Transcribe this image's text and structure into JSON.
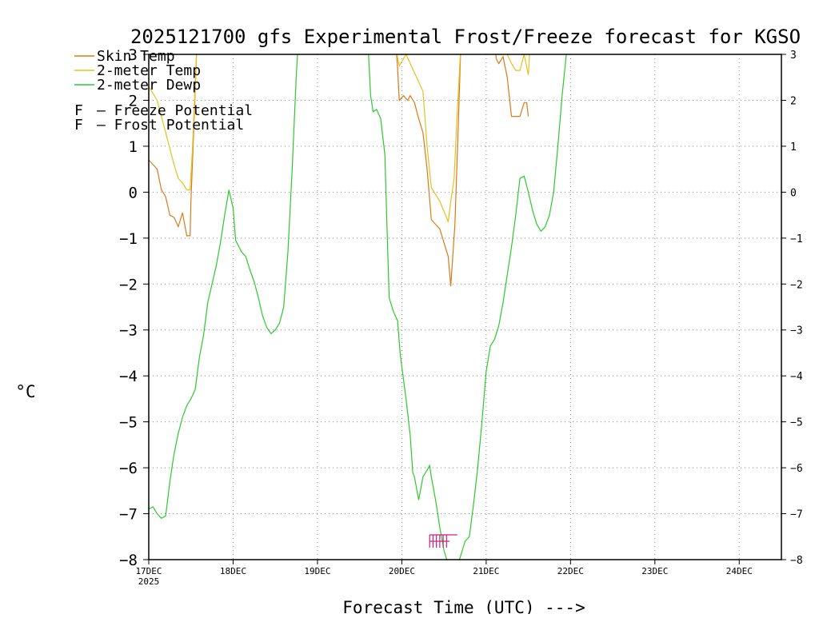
{
  "chart_data": {
    "type": "line",
    "title": "2025121700 gfs Experimental Frost/Freeze forecast for KGSO",
    "ylabel": "°C",
    "xlabel": "Forecast Time (UTC) --->",
    "ylim": [
      -8,
      3
    ],
    "xlim": [
      0,
      7.5
    ],
    "y_ticks": [
      "−8",
      "−7",
      "−6",
      "−5",
      "−4",
      "−3",
      "−2",
      "−1",
      "0",
      "1",
      "2",
      "3"
    ],
    "y_tick_values": [
      -8,
      -7,
      -6,
      -5,
      -4,
      -3,
      -2,
      -1,
      0,
      1,
      2,
      3
    ],
    "x_ticks": [
      "17DEC",
      "18DEC",
      "19DEC",
      "20DEC",
      "21DEC",
      "22DEC",
      "23DEC",
      "24DEC"
    ],
    "x_tick_values": [
      0,
      1,
      2,
      3,
      4,
      5,
      6,
      7
    ],
    "x_year_label": "2025",
    "x_unit": "days since 17DEC 00Z",
    "grid": true,
    "legend": {
      "series": [
        "Skin Temp",
        "2-meter Temp",
        "2-meter Dewp"
      ],
      "potential_labels": [
        {
          "symbol": "F",
          "text": "– Freeze Potential",
          "color": "#c8207e"
        },
        {
          "symbol": "F",
          "text": "– Frost Potential",
          "color": "#4a4ae0"
        }
      ]
    },
    "series": [
      {
        "name": "Skin Temp",
        "color": "#d97a1a",
        "segments": [
          [
            [
              0,
              0.7
            ],
            [
              0.05,
              0.6
            ],
            [
              0.1,
              0.5
            ],
            [
              0.15,
              0.05
            ],
            [
              0.2,
              -0.1
            ],
            [
              0.25,
              -0.5
            ],
            [
              0.3,
              -0.55
            ],
            [
              0.35,
              -0.75
            ],
            [
              0.4,
              -0.45
            ],
            [
              0.45,
              -0.95
            ],
            [
              0.49,
              -0.95
            ],
            [
              0.5,
              -0.2
            ],
            [
              0.53,
              1.2
            ],
            [
              0.57,
              3.2
            ]
          ],
          [
            [
              2.93,
              3.2
            ],
            [
              2.95,
              2.7
            ],
            [
              2.97,
              2.0
            ],
            [
              3.02,
              2.1
            ],
            [
              3.07,
              2.0
            ],
            [
              3.1,
              2.1
            ],
            [
              3.15,
              1.95
            ],
            [
              3.2,
              1.6
            ],
            [
              3.25,
              1.3
            ],
            [
              3.3,
              0.5
            ],
            [
              3.35,
              -0.6
            ],
            [
              3.4,
              -0.7
            ],
            [
              3.45,
              -0.8
            ],
            [
              3.5,
              -1.1
            ],
            [
              3.55,
              -1.4
            ],
            [
              3.58,
              -2.05
            ],
            [
              3.6,
              -1.5
            ],
            [
              3.63,
              -0.7
            ],
            [
              3.67,
              1.5
            ],
            [
              3.7,
              3.2
            ]
          ],
          [
            [
              4.1,
              3.2
            ],
            [
              4.12,
              2.9
            ],
            [
              4.15,
              2.8
            ],
            [
              4.2,
              2.95
            ],
            [
              4.25,
              2.5
            ],
            [
              4.3,
              1.65
            ],
            [
              4.4,
              1.65
            ],
            [
              4.45,
              1.95
            ],
            [
              4.48,
              1.95
            ],
            [
              4.5,
              1.65
            ]
          ]
        ]
      },
      {
        "name": "2-meter Temp",
        "color": "#e6c020",
        "segments": [
          [
            [
              0,
              2.3
            ],
            [
              0.1,
              2.0
            ],
            [
              0.2,
              1.3
            ],
            [
              0.3,
              0.6
            ],
            [
              0.35,
              0.3
            ],
            [
              0.4,
              0.2
            ],
            [
              0.45,
              0.05
            ],
            [
              0.49,
              0.05
            ],
            [
              0.52,
              1.0
            ],
            [
              0.57,
              3.2
            ]
          ],
          [
            [
              2.92,
              3.2
            ],
            [
              2.97,
              2.75
            ],
            [
              3.05,
              3.0
            ],
            [
              3.15,
              2.6
            ],
            [
              3.25,
              2.2
            ],
            [
              3.3,
              1.0
            ],
            [
              3.35,
              0.1
            ],
            [
              3.45,
              -0.2
            ],
            [
              3.52,
              -0.5
            ],
            [
              3.55,
              -0.65
            ],
            [
              3.58,
              -0.2
            ],
            [
              3.62,
              0.3
            ],
            [
              3.65,
              1.5
            ],
            [
              3.7,
              3.2
            ]
          ],
          [
            [
              4.1,
              3.2
            ],
            [
              4.15,
              3.0
            ],
            [
              4.25,
              3.0
            ],
            [
              4.3,
              2.8
            ],
            [
              4.35,
              2.65
            ],
            [
              4.4,
              2.65
            ],
            [
              4.45,
              3.0
            ],
            [
              4.5,
              2.55
            ],
            [
              4.52,
              3.2
            ]
          ]
        ]
      },
      {
        "name": "2-meter Dewp",
        "color": "#2ec82e",
        "segments": [
          [
            [
              0,
              -6.9
            ],
            [
              0.05,
              -6.85
            ],
            [
              0.1,
              -7.0
            ],
            [
              0.15,
              -7.1
            ],
            [
              0.2,
              -7.05
            ],
            [
              0.25,
              -6.3
            ],
            [
              0.3,
              -5.7
            ],
            [
              0.35,
              -5.25
            ],
            [
              0.4,
              -4.9
            ],
            [
              0.45,
              -4.65
            ],
            [
              0.5,
              -4.5
            ],
            [
              0.55,
              -4.3
            ],
            [
              0.6,
              -3.6
            ],
            [
              0.65,
              -3.1
            ],
            [
              0.7,
              -2.4
            ],
            [
              0.75,
              -2.0
            ],
            [
              0.8,
              -1.6
            ],
            [
              0.85,
              -1.1
            ],
            [
              0.9,
              -0.5
            ],
            [
              0.95,
              0.05
            ],
            [
              1.0,
              -0.35
            ],
            [
              1.03,
              -1.05
            ],
            [
              1.1,
              -1.3
            ],
            [
              1.15,
              -1.4
            ],
            [
              1.2,
              -1.7
            ],
            [
              1.25,
              -1.95
            ],
            [
              1.3,
              -2.3
            ],
            [
              1.35,
              -2.7
            ],
            [
              1.4,
              -2.95
            ],
            [
              1.45,
              -3.08
            ],
            [
              1.5,
              -3.0
            ],
            [
              1.55,
              -2.85
            ],
            [
              1.6,
              -2.5
            ],
            [
              1.65,
              -1.3
            ],
            [
              1.7,
              0.5
            ],
            [
              1.75,
              2.6
            ],
            [
              1.77,
              3.2
            ]
          ],
          [
            [
              2.6,
              3.2
            ],
            [
              2.63,
              2.1
            ],
            [
              2.66,
              1.75
            ],
            [
              2.7,
              1.8
            ],
            [
              2.75,
              1.6
            ],
            [
              2.8,
              0.8
            ],
            [
              2.82,
              -0.5
            ],
            [
              2.85,
              -2.3
            ],
            [
              2.9,
              -2.6
            ],
            [
              2.95,
              -2.8
            ],
            [
              2.98,
              -3.5
            ],
            [
              3.0,
              -3.8
            ],
            [
              3.05,
              -4.5
            ],
            [
              3.1,
              -5.3
            ],
            [
              3.13,
              -6.1
            ],
            [
              3.15,
              -6.2
            ],
            [
              3.2,
              -6.7
            ],
            [
              3.25,
              -6.2
            ],
            [
              3.3,
              -6.05
            ],
            [
              3.33,
              -5.95
            ],
            [
              3.35,
              -6.2
            ],
            [
              3.4,
              -6.7
            ],
            [
              3.45,
              -7.3
            ],
            [
              3.5,
              -7.8
            ],
            [
              3.55,
              -8.1
            ],
            [
              3.6,
              -8.2
            ],
            [
              3.65,
              -8.2
            ],
            [
              3.7,
              -7.9
            ],
            [
              3.75,
              -7.6
            ],
            [
              3.8,
              -7.5
            ],
            [
              3.85,
              -6.8
            ],
            [
              3.9,
              -6.0
            ],
            [
              3.95,
              -5.0
            ],
            [
              4.0,
              -3.9
            ],
            [
              4.05,
              -3.35
            ],
            [
              4.1,
              -3.2
            ],
            [
              4.15,
              -2.9
            ],
            [
              4.2,
              -2.4
            ],
            [
              4.25,
              -1.8
            ],
            [
              4.3,
              -1.2
            ],
            [
              4.35,
              -0.5
            ],
            [
              4.4,
              0.3
            ],
            [
              4.45,
              0.35
            ],
            [
              4.5,
              0.0
            ],
            [
              4.55,
              -0.4
            ],
            [
              4.6,
              -0.7
            ],
            [
              4.65,
              -0.85
            ],
            [
              4.7,
              -0.75
            ],
            [
              4.75,
              -0.5
            ],
            [
              4.8,
              0.0
            ],
            [
              4.85,
              1.0
            ],
            [
              4.9,
              2.1
            ],
            [
              4.95,
              3.0
            ],
            [
              4.97,
              3.2
            ]
          ]
        ]
      }
    ],
    "freeze_markers": {
      "label": "F",
      "color": "#c8207e",
      "y": -7.6,
      "x_start": 3.33,
      "x_end": 3.6,
      "ticks": [
        3.33,
        3.37,
        3.41,
        3.45,
        3.49,
        3.53
      ]
    }
  }
}
